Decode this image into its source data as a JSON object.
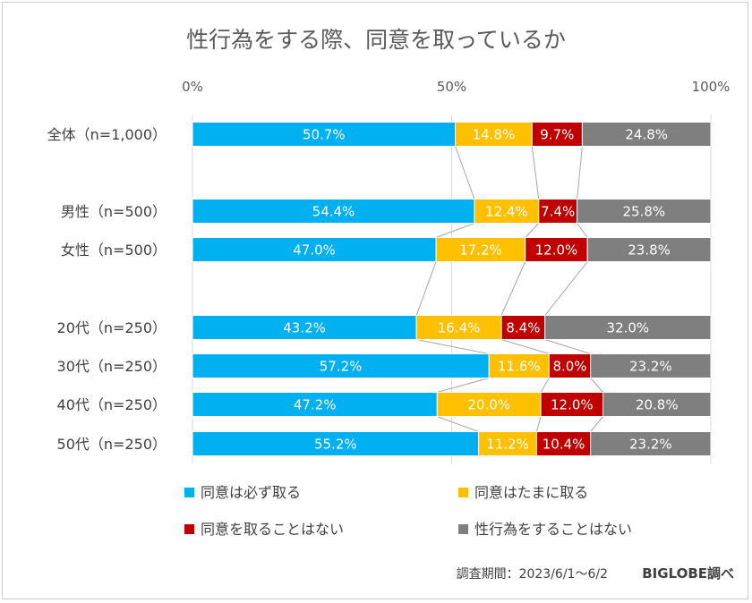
{
  "chart_data": {
    "type": "bar",
    "stacked": true,
    "orientation": "horizontal",
    "title": "性行為をする際、同意を取っているか",
    "xlim": [
      0,
      100
    ],
    "x_ticks": [
      "0%",
      "50%",
      "100%"
    ],
    "grid": true,
    "legend_position": "bottom",
    "categories": [
      "全体（n=1,000）",
      "男性（n=500）",
      "女性（n=500）",
      "20代（n=250）",
      "30代（n=250）",
      "40代（n=250）",
      "50代（n=250）"
    ],
    "series": [
      {
        "name": "同意は必ず取る",
        "color": "#00B0F0",
        "values": [
          50.7,
          54.4,
          47.0,
          43.2,
          57.2,
          47.2,
          55.2
        ],
        "labels": [
          "50.7%",
          "54.4%",
          "47.0%",
          "43.2%",
          "57.2%",
          "47.2%",
          "55.2%"
        ]
      },
      {
        "name": "同意はたまに取る",
        "color": "#FFC000",
        "values": [
          14.8,
          12.4,
          17.2,
          16.4,
          11.6,
          20.0,
          11.2
        ],
        "labels": [
          "14.8%",
          "12.4%",
          "17.2%",
          "16.4%",
          "11.6%",
          "20.0%",
          "11.2%"
        ]
      },
      {
        "name": "同意を取ることはない",
        "color": "#C00000",
        "values": [
          9.7,
          7.4,
          12.0,
          8.4,
          8.0,
          12.0,
          10.4
        ],
        "labels": [
          "9.7%",
          "7.4%",
          "12.0%",
          "8.4%",
          "8.0%",
          "12.0%",
          "10.4%"
        ]
      },
      {
        "name": "性行為をすることはない",
        "color": "#7F7F7F",
        "values": [
          24.8,
          25.8,
          23.8,
          32.0,
          23.2,
          20.8,
          23.2
        ],
        "labels": [
          "24.8%",
          "25.8%",
          "23.8%",
          "32.0%",
          "23.2%",
          "20.8%",
          "23.2%"
        ]
      }
    ],
    "note": "調査期間：2023/6/1～6/2",
    "source": "BIGLOBE調べ"
  }
}
